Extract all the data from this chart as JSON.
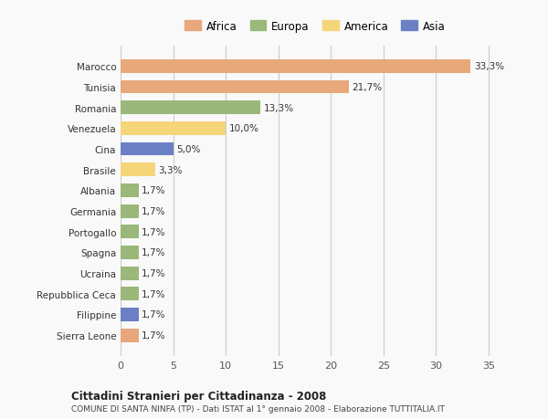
{
  "categories": [
    "Sierra Leone",
    "Filippine",
    "Repubblica Ceca",
    "Ucraina",
    "Spagna",
    "Portogallo",
    "Germania",
    "Albania",
    "Brasile",
    "Cina",
    "Venezuela",
    "Romania",
    "Tunisia",
    "Marocco"
  ],
  "values": [
    1.7,
    1.7,
    1.7,
    1.7,
    1.7,
    1.7,
    1.7,
    1.7,
    3.3,
    5.0,
    10.0,
    13.3,
    21.7,
    33.3
  ],
  "labels": [
    "1,7%",
    "1,7%",
    "1,7%",
    "1,7%",
    "1,7%",
    "1,7%",
    "1,7%",
    "1,7%",
    "3,3%",
    "5,0%",
    "10,0%",
    "13,3%",
    "21,7%",
    "33,3%"
  ],
  "colors": [
    "#e8a87c",
    "#6b7fc4",
    "#9ab87a",
    "#9ab87a",
    "#9ab87a",
    "#9ab87a",
    "#9ab87a",
    "#9ab87a",
    "#f5d57a",
    "#6b7fc4",
    "#f5d57a",
    "#9ab87a",
    "#e8a87c",
    "#e8a87c"
  ],
  "legend_labels": [
    "Africa",
    "Europa",
    "America",
    "Asia"
  ],
  "legend_colors": [
    "#e8a87c",
    "#9ab87a",
    "#f5d57a",
    "#6b7fc4"
  ],
  "title": "Cittadini Stranieri per Cittadinanza - 2008",
  "subtitle": "COMUNE DI SANTA NINFA (TP) - Dati ISTAT al 1° gennaio 2008 - Elaborazione TUTTITALIA.IT",
  "xlim": [
    0,
    37
  ],
  "xticks": [
    0,
    5,
    10,
    15,
    20,
    25,
    30,
    35
  ],
  "background_color": "#f9f9f9",
  "bar_height": 0.65,
  "grid_color": "#cccccc"
}
